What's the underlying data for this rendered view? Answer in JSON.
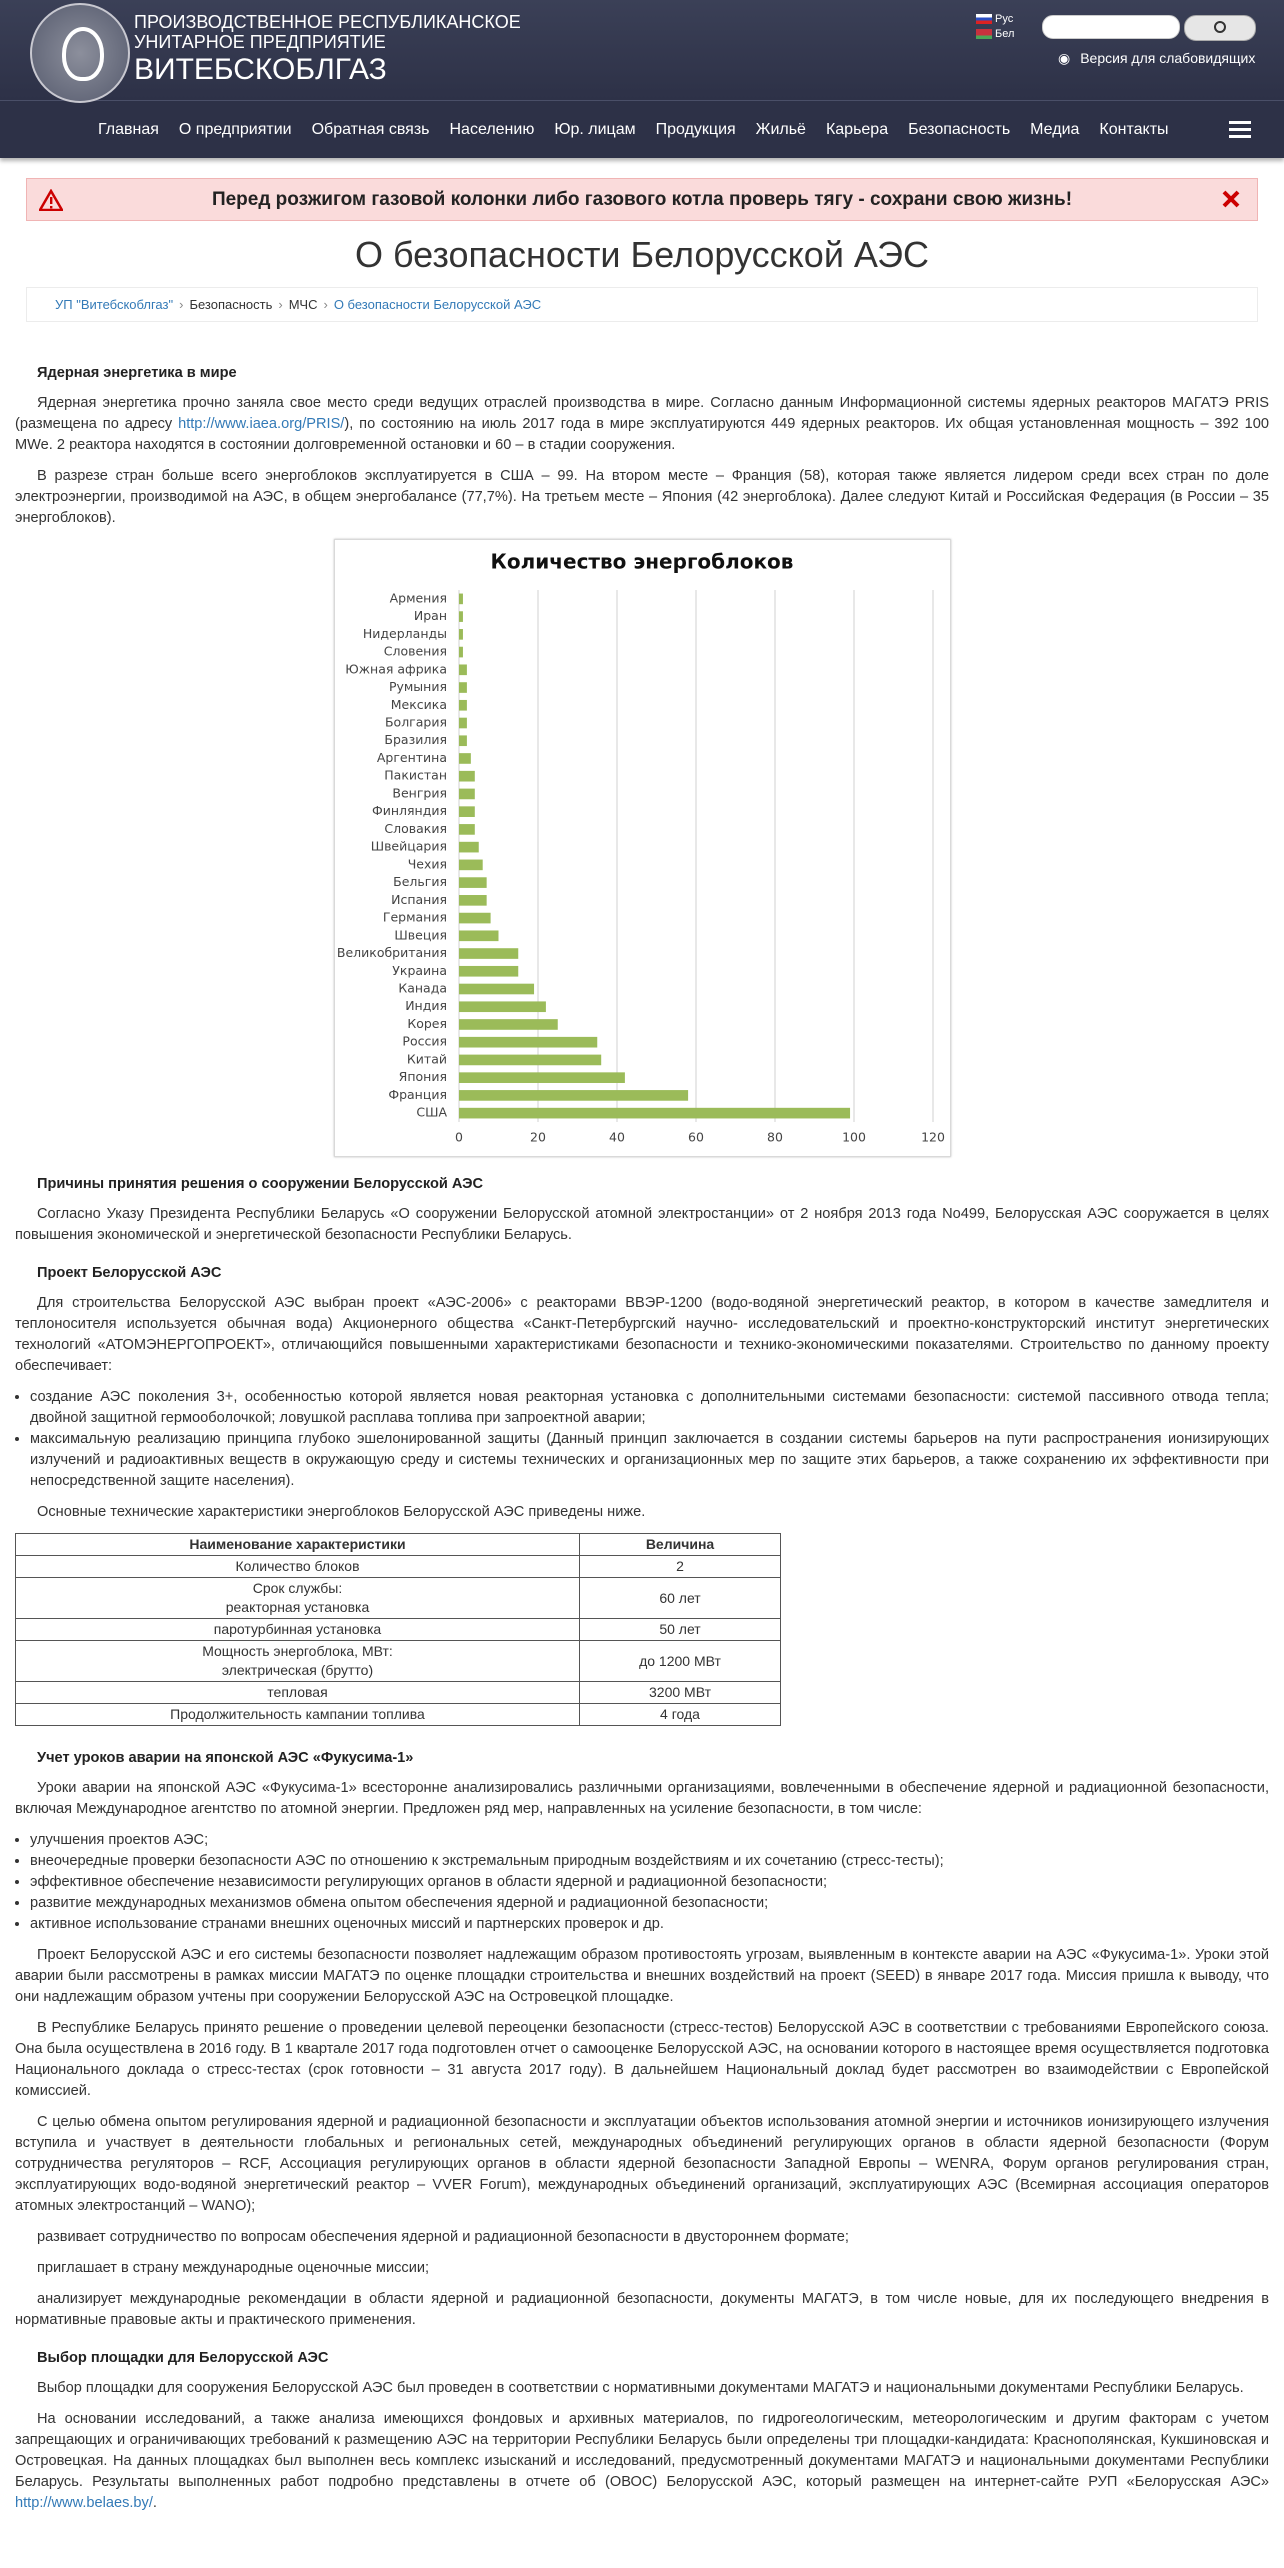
{
  "header": {
    "org_line1": "ПРОИЗВОДСТВЕННОЕ РЕСПУБЛИКАНСКОЕ",
    "org_line2": "УНИТАРНОЕ ПРЕДПРИЯТИЕ",
    "org_name": "ВИТЕБСКОБЛГАЗ",
    "lang_ru": "Рус",
    "lang_by": "Бел",
    "accessibility": "Версия для слабовидящих"
  },
  "nav": [
    "Главная",
    "О предприятии",
    "Обратная связь",
    "Населению",
    "Юр. лицам",
    "Продукция",
    "Жильё",
    "Карьера",
    "Безопасность",
    "Медиа",
    "Контакты"
  ],
  "alert": "Перед розжигом газовой колонки либо газового котла проверь тягу - сохрани свою жизнь!",
  "title": "О безопасности Белорусской АЭС",
  "breadcrumb": [
    "УП \"Витебскоблгаз\"",
    "Безопасность",
    "МЧС",
    "О безопасности Белорусской АЭС"
  ],
  "content_top": [
    {
      "heading": "Ядерная энергетика в мире"
    },
    {
      "paragraph": [
        "Ядерная энергетика прочно заняла свое место среди ведущих отраслей производства в мире. Согласно данным Информационной системы ядерных реакторов МАГАТЭ PRIS (размещена по адресу ",
        {
          "link": "http://www.iaea.org/PRIS/"
        },
        "), по состоянию на июль 2017 года в мире эксплуатируются 449 ядерных реакторов. Их общая установленная мощность – 392 100 MWe. 2 реактора находятся в состоянии долговременной остановки и 60 – в стадии сооружения."
      ]
    },
    {
      "paragraph": [
        "В разрезе стран больше всего энергоблоков эксплуатируется в США – 99. На втором месте – Франция (58), которая также является лидером среди всех стран по доле электроэнергии, производимой на АЭС, в общем энергобалансе (77,7%). На третьем месте – Япония (42 энергоблока). Далее следуют Китай и Российская Федерация (в России – 35 энергоблоков)."
      ]
    }
  ],
  "chart_data": {
    "type": "bar",
    "orientation": "horizontal",
    "title": "Количество энергоблоков",
    "categories": [
      "Армения",
      "Иран",
      "Нидерланды",
      "Словения",
      "Южная африка",
      "Румыния",
      "Мексика",
      "Болгария",
      "Бразилия",
      "Аргентина",
      "Пакистан",
      "Венгрия",
      "Финляндия",
      "Словакия",
      "Швейцария",
      "Чехия",
      "Бельгия",
      "Испания",
      "Германия",
      "Швеция",
      "Великобритания",
      "Украина",
      "Канада",
      "Индия",
      "Корея",
      "Россия",
      "Китай",
      "Япония",
      "Франция",
      "США"
    ],
    "values": [
      1,
      1,
      1,
      1,
      2,
      2,
      2,
      2,
      2,
      3,
      4,
      4,
      4,
      4,
      5,
      6,
      7,
      7,
      8,
      10,
      15,
      15,
      19,
      22,
      25,
      35,
      36,
      42,
      58,
      99
    ],
    "color": "#9bbb59",
    "xlim": [
      0,
      120
    ],
    "xticks": [
      0,
      20,
      40,
      60,
      80,
      100,
      120
    ],
    "grid": true
  },
  "content_bottom": [
    {
      "heading": "Причины принятия решения о сооружении Белорусской АЭС"
    },
    {
      "paragraph": [
        "Согласно Указу Президента Республики Беларусь «О сооружении Белорусской атомной электростанции» от 2 ноября 2013 года No499, Белорусская АЭС сооружается в целях повышения экономической и энергетической безопасности Республики Беларусь."
      ]
    },
    {
      "heading": "Проект Белорусской АЭС"
    },
    {
      "paragraph": [
        "Для строительства Белорусской АЭС выбран проект «АЭС-2006» с реакторами ВВЭР-1200 (водо-водяной энергетический реактор, в котором в качестве замедлителя и теплоносителя используется обычная вода) Акционерного общества «Санкт-Петербургский научно- исследовательский и проектно-конструкторский институт энергетических технологий «АТОМЭНЕРГОПРОЕКТ», отличающийся повышенными характеристиками безопасности и технико-экономическими показателями. Строительство по данному проекту обеспечивает:"
      ]
    },
    {
      "list": [
        "создание АЭС поколения 3+, особенностью которой является новая реакторная установка с дополнительными системами безопасности: системой пассивного отвода тепла; двойной защитной гермооболочкой; ловушкой расплава топлива при запроектной аварии;",
        "максимальную реализацию принципа глубоко эшелонированной защиты (Данный принцип заключается в создании системы барьеров на пути распространения ионизирующих излучений и радиоактивных веществ в окружающую среду и системы технических и организационных мер по защите этих барьеров, а также сохранению их эффективности при непосредственной защите населения)."
      ]
    },
    {
      "paragraph": [
        "Основные технические характеристики энергоблоков Белорусской АЭС приведены ниже."
      ]
    },
    {
      "table": {
        "header": [
          "Наименование характеристики",
          "Величина"
        ],
        "rows": [
          [
            "Количество блоков",
            "2"
          ],
          [
            "Срок службы:\nреакторная установка",
            "60 лет"
          ],
          [
            "паротурбинная установка",
            "50 лет"
          ],
          [
            "Мощность энергоблока, МВт:\nэлектрическая (брутто)",
            "до 1200 МВт"
          ],
          [
            "тепловая",
            "3200 МВт"
          ],
          [
            "Продолжительность кампании топлива",
            "4 года"
          ]
        ]
      }
    },
    {
      "heading": "Учет уроков аварии на японской АЭС «Фукусима-1»"
    },
    {
      "paragraph": [
        "Уроки аварии на японской АЭС «Фукусима-1» всесторонне анализировались различными организациями, вовлеченными в обеспечение ядерной и радиационной безопасности, включая Международное агентство по атомной энергии. Предложен ряд мер, направленных на усиление безопасности, в том числе:"
      ]
    },
    {
      "list": [
        "улучшения проектов АЭС;",
        "внеочередные проверки безопасности АЭС по отношению к экстремальным природным воздействиям и их сочетанию (стресс-тесты);",
        "эффективное обеспечение независимости регулирующих органов в области ядерной и радиационной безопасности;",
        "развитие международных механизмов обмена опытом обеспечения ядерной и радиационной безопасности;",
        "активное использование странами внешних оценочных миссий и партнерских проверок и др."
      ]
    },
    {
      "paragraph": [
        "Проект Белорусской АЭС и его системы безопасности позволяет надлежащим образом противостоять угрозам, выявленным в контексте аварии на АЭС «Фукусима-1». Уроки этой аварии были рассмотрены в рамках миссии МАГАТЭ по оценке площадки строительства и внешних воздействий на проект (SEED) в январе 2017 года. Миссия пришла к выводу, что они надлежащим образом учтены при сооружении Белорусской АЭС на Островецкой площадке."
      ]
    },
    {
      "paragraph": [
        "В Республике Беларусь принято решение о проведении целевой переоценки безопасности (стресс-тестов) Белорусской АЭС в соответствии с требованиями Европейского союза. Она была осуществлена в 2016 году. В 1 квартале 2017 года подготовлен отчет о самооценке Белорусской АЭС, на основании которого в настоящее время осуществляется подготовка Национального доклада о стресс-тестах (срок готовности – 31 августа 2017 году). В дальнейшем Национальный доклад будет рассмотрен во взаимодействии с Европейской комиссией."
      ]
    },
    {
      "paragraph": [
        "С целью обмена опытом регулирования ядерной и радиационной безопасности и эксплуатации объектов использования атомной энергии и источников ионизирующего излучения вступила и участвует в деятельности глобальных и региональных сетей, международных объединений регулирующих органов в области ядерной безопасности (Форум сотрудничества регуляторов – RCF, Ассоциация регулирующих органов в области ядерной безопасности Западной Европы – WENRA, Форум органов регулирования стран, эксплуатирующих водо-водяной энергетический реактор – VVER Forum), международных объединений организаций, эксплуатирующих АЭС (Всемирная ассоциация операторов атомных электростанций – WANO);"
      ]
    },
    {
      "paragraph": [
        "развивает сотрудничество по вопросам обеспечения ядерной и радиационной безопасности в двустороннем формате;"
      ]
    },
    {
      "paragraph": [
        "приглашает в страну международные оценочные миссии;"
      ]
    },
    {
      "paragraph": [
        "анализирует международные рекомендации в области ядерной и радиационной безопасности, документы МАГАТЭ, в том числе новые, для их последующего внедрения в нормативные правовые акты и практического применения."
      ]
    },
    {
      "heading": "Выбор площадки для Белорусской АЭС"
    },
    {
      "paragraph": [
        "Выбор площадки для сооружения Белорусской АЭС был проведен в соответствии с нормативными документами МАГАТЭ и национальными документами Республики Беларусь."
      ]
    },
    {
      "paragraph": [
        "На основании исследований, а также анализа имеющихся фондовых и архивных материалов, по гидрогеологическим, метеорологическим и другим факторам с учетом запрещающих и ограничивающих требований к размещению АЭС на территории Республики Беларусь были определены три площадки-кандидата: Краснополянская, Кукшиновская и Островецкая. На данных площадках был выполнен весь комплекс изысканий и исследований, предусмотренный документами МАГАТЭ и национальными документами Республики Беларусь. Результаты выполненных работ подробно представлены в отчете об (ОВОС) Белорусской АЭС, который размещен на интернет-сайте РУП «Белорусская АЭС» ",
        {
          "link": "http://www.belaes.by/"
        },
        "."
      ]
    }
  ]
}
